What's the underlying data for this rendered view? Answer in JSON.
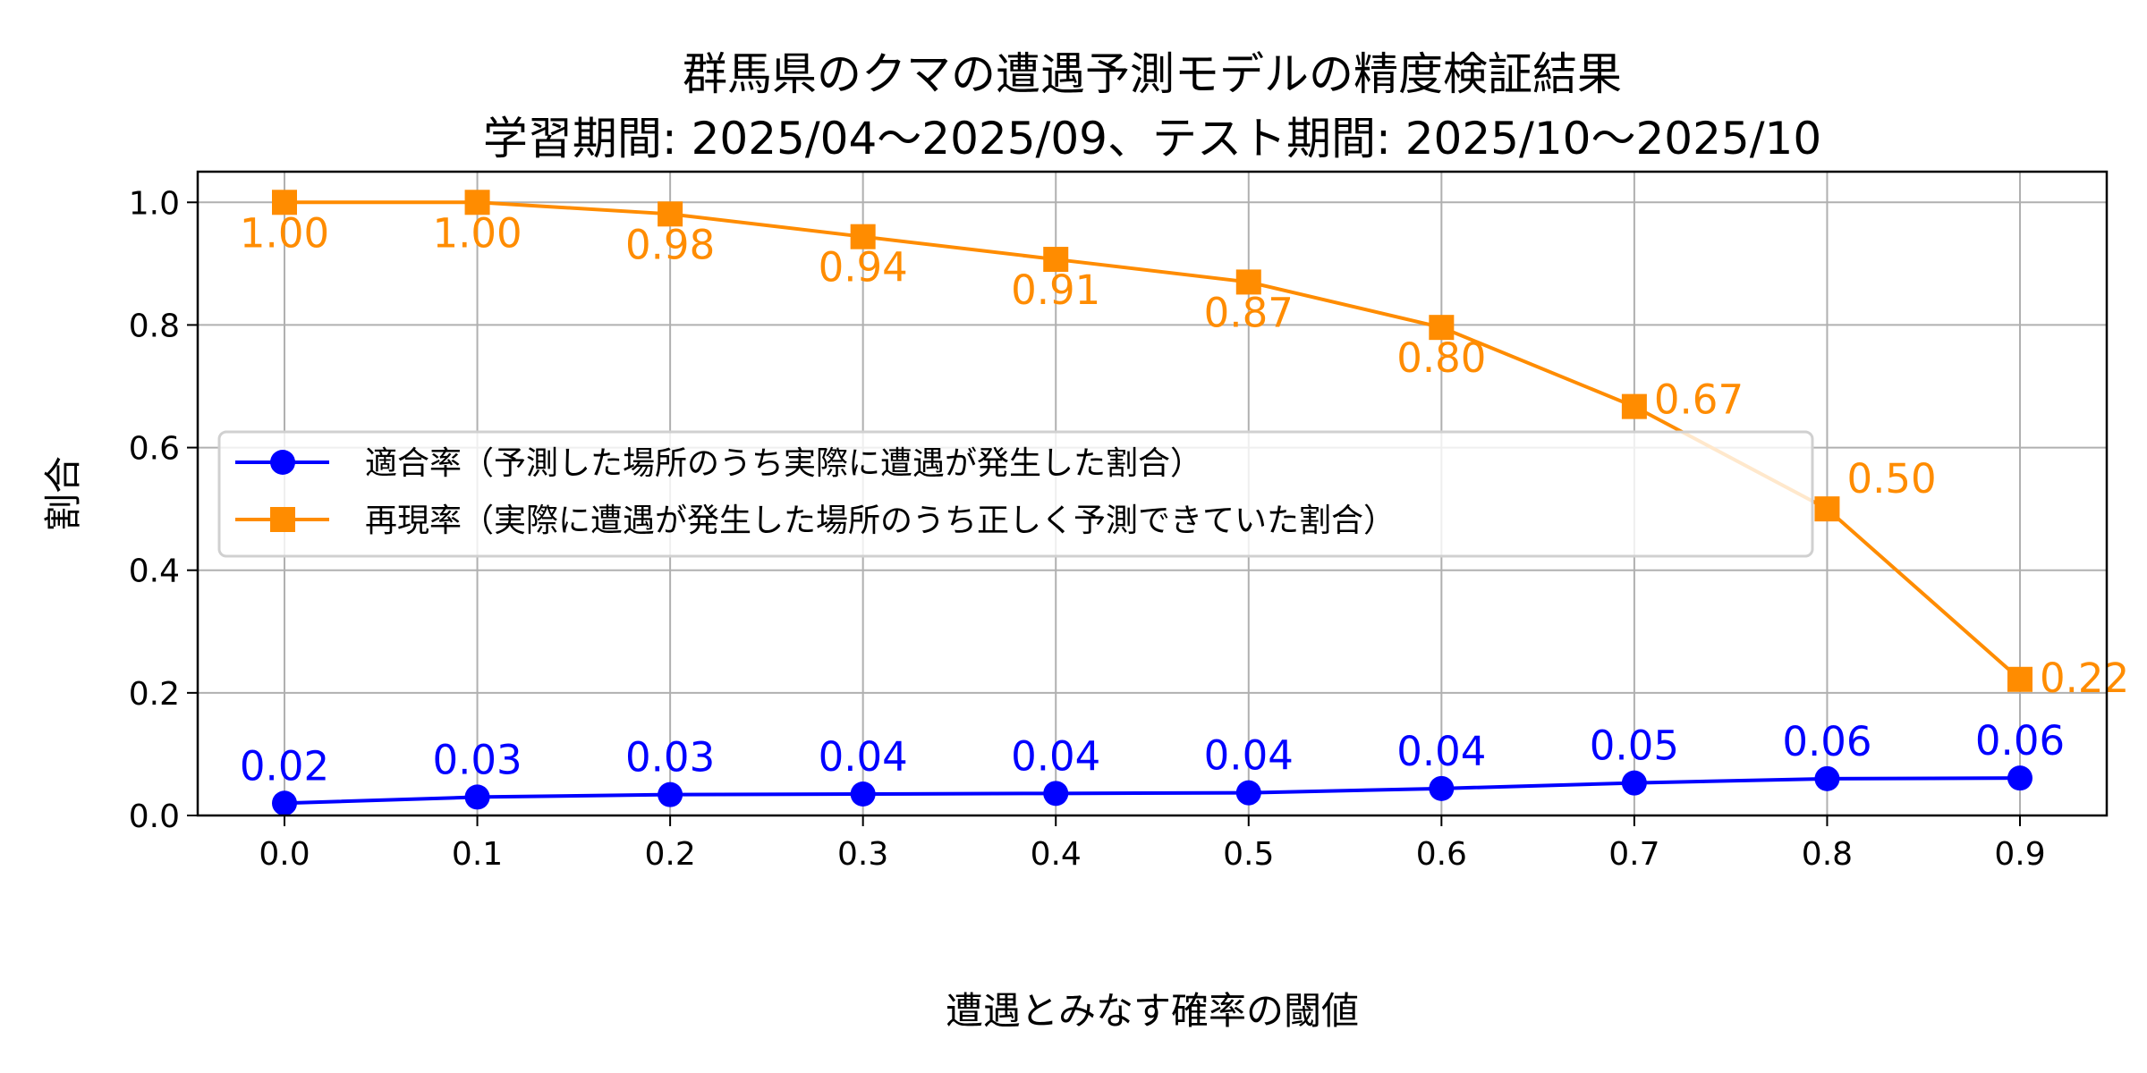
{
  "chart_data": {
    "type": "line",
    "title_line1": "群馬県のクマの遭遇予測モデルの精度検証結果",
    "title_line2": "学習期間: 2025/04〜2025/09、テスト期間: 2025/10〜2025/10",
    "xlabel": "遭遇とみなす確率の閾値",
    "ylabel": "割合",
    "xlim": [
      -0.045,
      0.945
    ],
    "ylim": [
      0,
      1.05
    ],
    "grid": true,
    "legend_placement": "center-left",
    "x": [
      0.0,
      0.1,
      0.2,
      0.3,
      0.4,
      0.5,
      0.6,
      0.7,
      0.8,
      0.9
    ],
    "x_ticks": [
      "0.0",
      "0.1",
      "0.2",
      "0.3",
      "0.4",
      "0.5",
      "0.6",
      "0.7",
      "0.8",
      "0.9"
    ],
    "y_ticks": [
      {
        "value": 0.0,
        "label": "0.0"
      },
      {
        "value": 0.2,
        "label": "0.2"
      },
      {
        "value": 0.4,
        "label": "0.4"
      },
      {
        "value": 0.6,
        "label": "0.6"
      },
      {
        "value": 0.8,
        "label": "0.8"
      },
      {
        "value": 1.0,
        "label": "1.0"
      }
    ],
    "series": [
      {
        "name": "適合率（予測した場所のうち実際に遭遇が発生した割合）",
        "color": "#0000ff",
        "marker": "circle",
        "values": [
          0.02,
          0.03,
          0.034,
          0.035,
          0.036,
          0.037,
          0.044,
          0.053,
          0.06,
          0.061
        ],
        "labels": [
          "0.02",
          "0.03",
          "0.03",
          "0.04",
          "0.04",
          "0.04",
          "0.04",
          "0.05",
          "0.06",
          "0.06"
        ],
        "label_position": "above"
      },
      {
        "name": "再現率（実際に遭遇が発生した場所のうち正しく予測できていた割合）",
        "color": "#ff8c00",
        "marker": "square",
        "values": [
          1.0,
          1.0,
          0.981,
          0.944,
          0.907,
          0.87,
          0.796,
          0.667,
          0.5,
          0.222
        ],
        "labels": [
          "1.00",
          "1.00",
          "0.98",
          "0.94",
          "0.91",
          "0.87",
          "0.80",
          "0.67",
          "0.50",
          "0.22"
        ],
        "label_position": "below"
      }
    ]
  }
}
